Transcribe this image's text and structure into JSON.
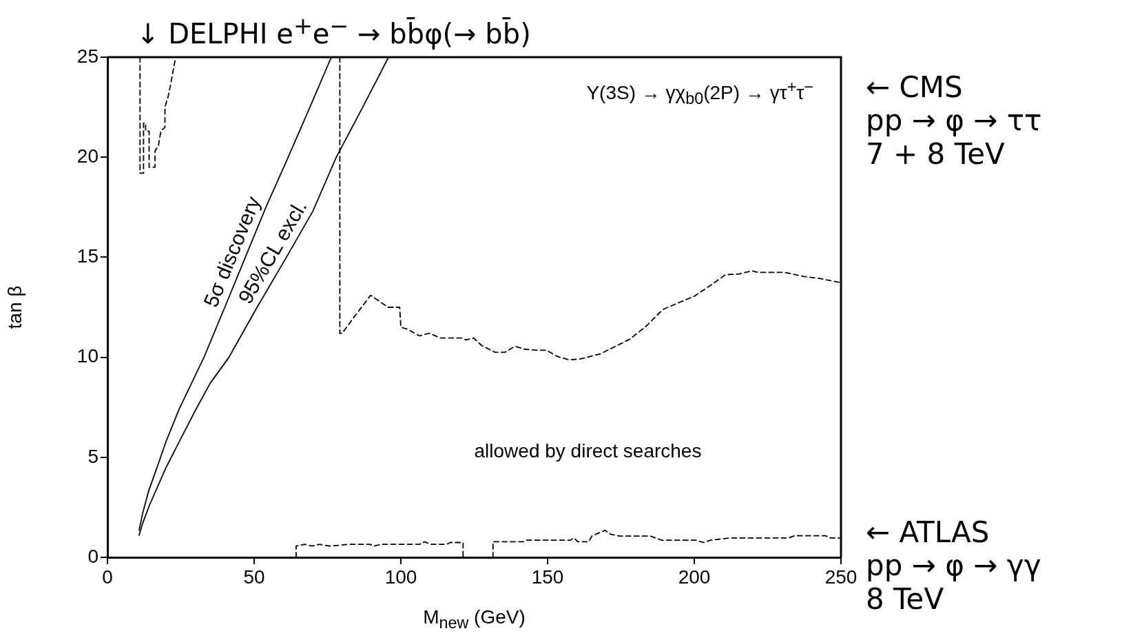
{
  "chart_data": {
    "type": "line",
    "xlabel": "M$_{new}$ (GeV)",
    "ylabel": "tan β",
    "xlim": [
      0,
      250
    ],
    "xticks": [
      0,
      50,
      100,
      150,
      200,
      250
    ],
    "ylim": [
      0,
      25
    ],
    "yticks": [
      0,
      5,
      10,
      15,
      20,
      25
    ],
    "grid": false,
    "legend": false,
    "marker": "none",
    "annotations": [
      "↓ DELPHI e$^{+}$e$^{−}$ → bb̄φ(→ bb̄)",
      "← CMS\npp → φ → ττ\n7 + 8 TeV",
      "← ATLAS\npp → φ → γγ\n8 TeV",
      "Υ(3S) → γχ$_{b0}$(2P) → γτ$^{+}$τ$^{−}$",
      "allowed by direct searches"
    ],
    "series": [
      {
        "name": "5σ discovery",
        "color": "#000000",
        "line_style": "solid",
        "x": [
          10.8,
          12,
          14,
          17.4,
          20,
          24.4,
          32.9,
          40,
          47,
          54,
          61.6,
          69,
          76.3
        ],
        "values": [
          1.36,
          2.2,
          3.3,
          4.7,
          5.8,
          7.4,
          10,
          12.5,
          15,
          17.5,
          20,
          22.5,
          25
        ]
      },
      {
        "name": "95%CL excl.",
        "color": "#000000",
        "line_style": "solid",
        "x": [
          10.8,
          12,
          14.3,
          20,
          29.8,
          35,
          41.4,
          51,
          61,
          70,
          78,
          87,
          95.8
        ],
        "values": [
          1.1,
          1.7,
          2.6,
          4.5,
          7.3,
          8.7,
          10,
          12.5,
          15,
          17.3,
          20,
          22.5,
          25
        ]
      },
      {
        "color": "#000000",
        "line_style": "dashed",
        "x": [
          11.1,
          11.1,
          12.3,
          12.3,
          13.0,
          13.0,
          14.2,
          14.2,
          16.2,
          16.2,
          17.4,
          18.2,
          19.6,
          19.6,
          20.8,
          21.6,
          23.0,
          23.0
        ],
        "values": [
          25,
          19.2,
          19.2,
          21.7,
          21.7,
          21.3,
          21.3,
          19.5,
          19.5,
          20.3,
          20.6,
          21.3,
          21.5,
          22.5,
          23.1,
          23.7,
          24.8,
          25
        ]
      },
      {
        "color": "#000000",
        "line_style": "dashed",
        "x": [
          79.2,
          79.2,
          80,
          84,
          89.7,
          95.6,
          99.6,
          100,
          102.4,
          106.3,
          109.6,
          113.6,
          120.9,
          122,
          124.8,
          127.6,
          132.1,
          135.5,
          138.9,
          142.3,
          146.2,
          149.6,
          153.4,
          157.4,
          161.3,
          168,
          173.6,
          178.1,
          183.7,
          189.3,
          194.9,
          200,
          205.1,
          210.7,
          215.2,
          219.6,
          221.8,
          230.8,
          237.5,
          243.1,
          248.8,
          250
        ],
        "values": [
          25,
          11.2,
          11.2,
          12,
          13.1,
          12.5,
          12.5,
          11.5,
          11.4,
          11.07,
          11.2,
          10.96,
          10.96,
          10.87,
          10.96,
          10.58,
          10.25,
          10.25,
          10.55,
          10.4,
          10.35,
          10.35,
          10.04,
          9.87,
          9.92,
          10.17,
          10.58,
          10.91,
          11.57,
          12.39,
          12.74,
          13.05,
          13.55,
          14.13,
          14.16,
          14.32,
          14.24,
          14.24,
          14.04,
          13.93,
          13.76,
          13.75
        ]
      },
      {
        "color": "#000000",
        "line_style": "dashed",
        "x": [
          64.3,
          64.3,
          67.2,
          69.7,
          72.2,
          75.9,
          82.1,
          89.5,
          90.8,
          93.3,
          106.3,
          108.1,
          110,
          115.6,
          116.8,
          121.2,
          121.2,
          126,
          131.4,
          131.4,
          141.7,
          142.9,
          157.8,
          159,
          160.3,
          164,
          165.2,
          169.6,
          171.4,
          174.5,
          185.1,
          188.8,
          200.6,
          203.1,
          205.6,
          212.4,
          232.2,
          234.2,
          244.8,
          246,
          250
        ],
        "values": [
          0,
          0.56,
          0.65,
          0.56,
          0.65,
          0.56,
          0.65,
          0.65,
          0.56,
          0.65,
          0.65,
          0.78,
          0.65,
          0.65,
          0.74,
          0.74,
          0,
          null,
          0,
          0.78,
          0.78,
          0.86,
          0.86,
          0.97,
          0.78,
          0.78,
          1.08,
          1.35,
          1.16,
          1.06,
          1.06,
          0.86,
          0.86,
          0.74,
          0.86,
          0.97,
          0.97,
          1.08,
          1.08,
          0.97,
          0.97
        ]
      }
    ]
  }
}
